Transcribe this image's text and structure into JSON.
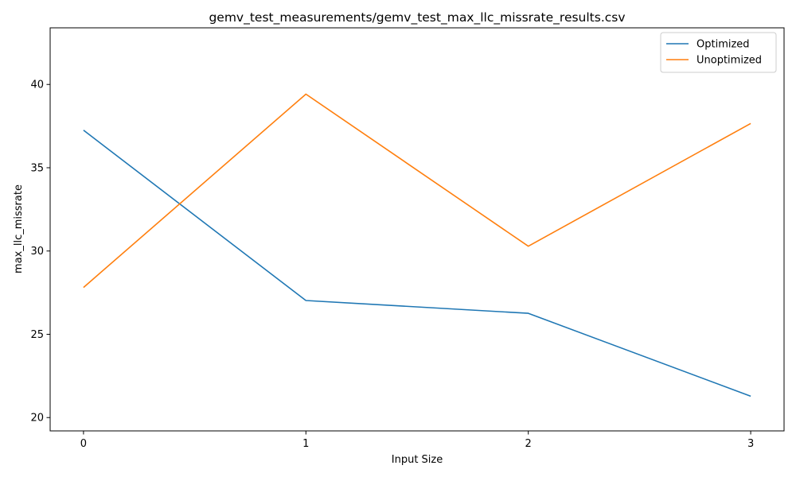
{
  "chart_data": {
    "type": "line",
    "title": "gemv_test_measurements/gemv_test_max_llc_missrate_results.csv",
    "xlabel": "Input Size",
    "ylabel": "max_llc_missrate",
    "x": [
      0,
      1,
      2,
      3
    ],
    "x_tick_labels": [
      "0",
      "1",
      "2",
      "3"
    ],
    "xlim": [
      -0.15,
      3.15
    ],
    "ylim": [
      19.2,
      43.4
    ],
    "y_ticks": [
      20,
      25,
      30,
      35,
      40
    ],
    "y_tick_labels": [
      "20",
      "25",
      "30",
      "35",
      "40"
    ],
    "grid": false,
    "legend_position": "top-right",
    "series": [
      {
        "name": "Optimized",
        "color": "#1f77b4",
        "values": [
          37.25,
          27.03,
          26.26,
          21.28
        ]
      },
      {
        "name": "Unoptimized",
        "color": "#ff7f0e",
        "values": [
          27.81,
          39.42,
          30.29,
          37.66
        ]
      }
    ]
  }
}
